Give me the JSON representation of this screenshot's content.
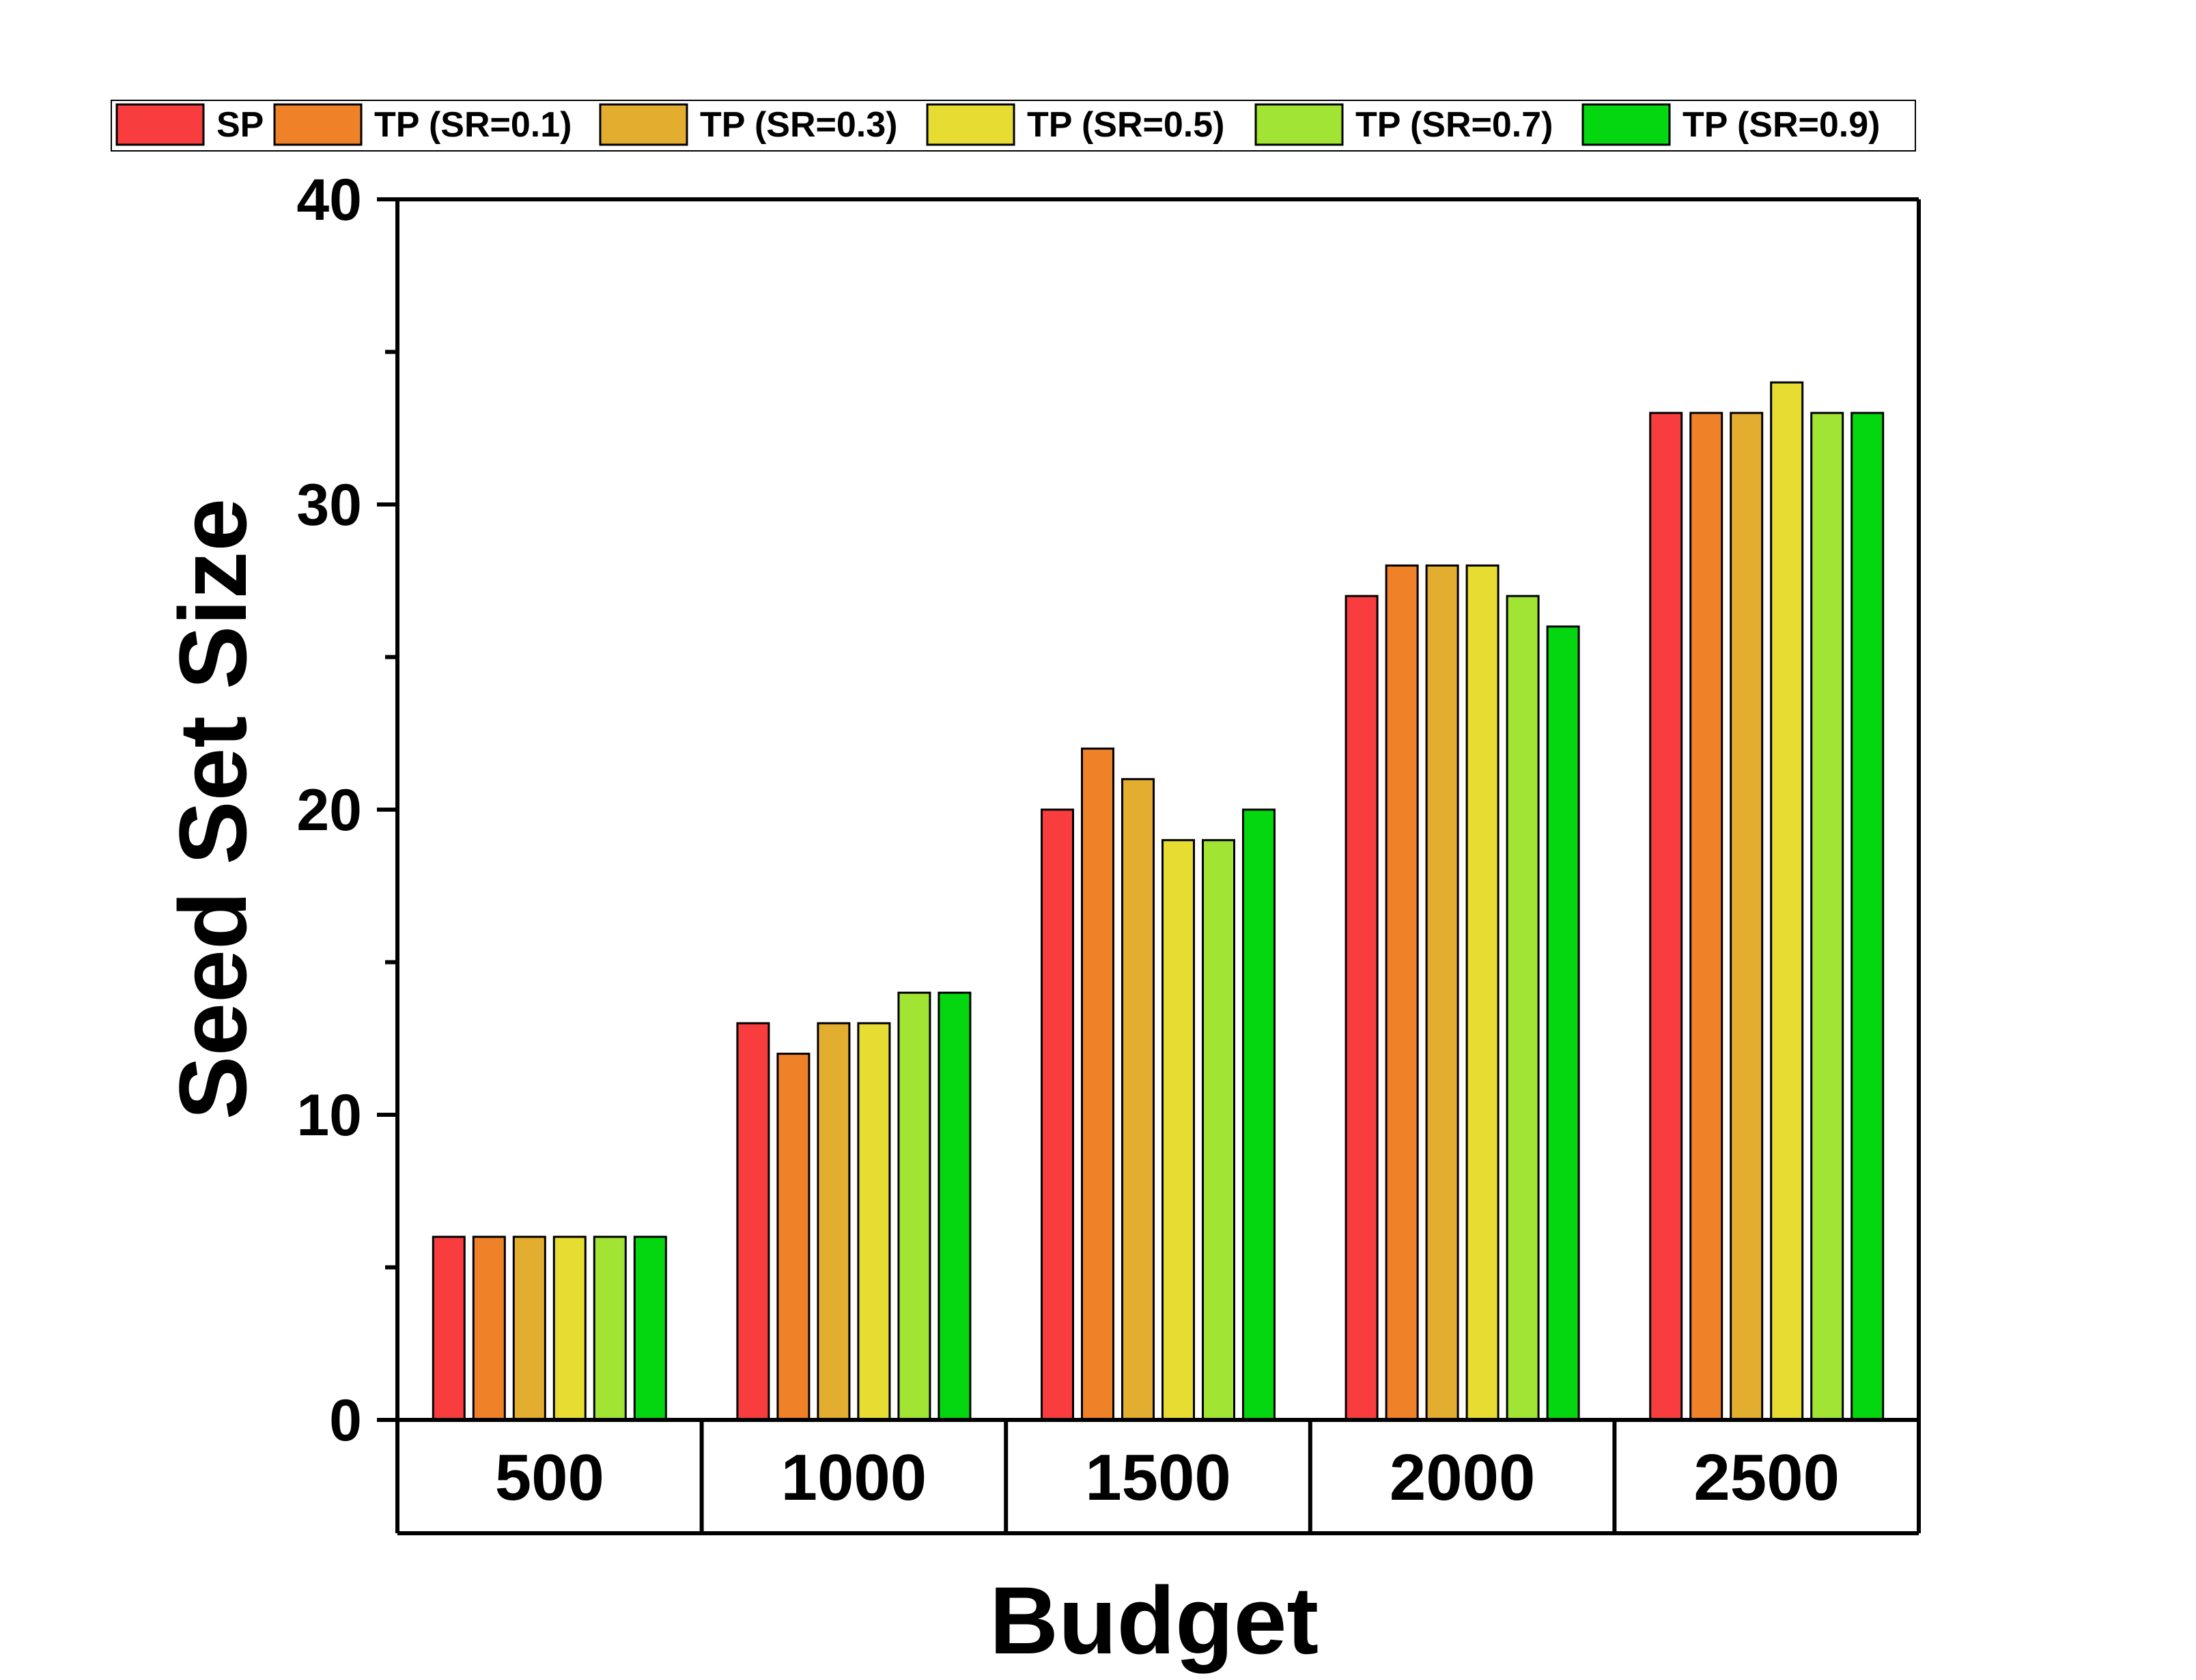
{
  "chart_data": {
    "type": "bar",
    "title": "",
    "xlabel": "Budget",
    "ylabel": "Seed Set Size",
    "categories": [
      "500",
      "1000",
      "1500",
      "2000",
      "2500"
    ],
    "ylim": [
      0,
      40
    ],
    "yticks": [
      "0",
      "10",
      "20",
      "30",
      "40"
    ],
    "legend_position": "top",
    "grid": false,
    "series": [
      {
        "name": "SP",
        "color": "#f93d3e",
        "values": [
          6,
          13,
          20,
          27,
          33
        ]
      },
      {
        "name": "TP (SR=0.1)",
        "color": "#ef8228",
        "values": [
          6,
          12,
          22,
          28,
          33
        ]
      },
      {
        "name": "TP (SR=0.3)",
        "color": "#e3ad2f",
        "values": [
          6,
          13,
          21,
          28,
          33
        ]
      },
      {
        "name": "TP (SR=0.5)",
        "color": "#e6dc32",
        "values": [
          6,
          13,
          19,
          28,
          34
        ]
      },
      {
        "name": "TP (SR=0.7)",
        "color": "#a1e434",
        "values": [
          6,
          14,
          19,
          27,
          33
        ]
      },
      {
        "name": "TP (SR=0.9)",
        "color": "#04d60f",
        "values": [
          6,
          14,
          20,
          26,
          33
        ]
      }
    ]
  }
}
